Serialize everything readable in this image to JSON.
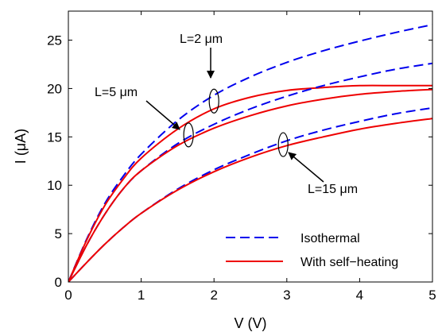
{
  "chart_data": {
    "type": "line",
    "xlabel": "V (V)",
    "ylabel": "I (μA)",
    "xlim": [
      0,
      5
    ],
    "ylim": [
      0,
      28
    ],
    "xticks": [
      "0",
      "1",
      "2",
      "3",
      "4",
      "5"
    ],
    "yticks": [
      "0",
      "5",
      "10",
      "15",
      "20",
      "25"
    ],
    "grid": false,
    "legend_position": "bottom-right",
    "colors": {
      "isothermal": "#0000ee",
      "self_heating": "#ee0000"
    },
    "legend": [
      {
        "label": "Isothermal",
        "style": "dashed",
        "color": "#0000ee"
      },
      {
        "label": "With self−heating",
        "style": "solid",
        "color": "#ee0000"
      }
    ],
    "series": [
      {
        "group": "L=2 μm",
        "name": "Isothermal",
        "style": "dashed",
        "color": "#0000ee",
        "x": [
          0,
          0.25,
          0.5,
          0.75,
          1,
          1.5,
          2,
          2.5,
          3,
          3.5,
          4,
          4.5,
          5
        ],
        "y": [
          0,
          4.4,
          8.1,
          10.9,
          13.2,
          16.7,
          19.3,
          21.2,
          22.7,
          23.9,
          24.9,
          25.8,
          26.6
        ]
      },
      {
        "group": "L=2 μm",
        "name": "With self−heating",
        "style": "solid",
        "color": "#ee0000",
        "x": [
          0,
          0.25,
          0.5,
          0.75,
          1,
          1.5,
          2,
          2.5,
          3,
          3.5,
          4,
          4.5,
          5
        ],
        "y": [
          0,
          4.3,
          7.9,
          10.6,
          12.8,
          15.8,
          17.9,
          19.1,
          19.8,
          20.1,
          20.3,
          20.3,
          20.3
        ]
      },
      {
        "group": "L=5 μm",
        "name": "Isothermal",
        "style": "dashed",
        "color": "#0000ee",
        "x": [
          0,
          0.25,
          0.5,
          0.75,
          1,
          1.5,
          2,
          2.5,
          3,
          3.5,
          4,
          4.5,
          5
        ],
        "y": [
          0,
          3.8,
          7.0,
          9.6,
          11.5,
          14.3,
          16.3,
          17.9,
          19.2,
          20.3,
          21.2,
          22.0,
          22.6
        ]
      },
      {
        "group": "L=5 μm",
        "name": "With self−heating",
        "style": "solid",
        "color": "#ee0000",
        "x": [
          0,
          0.25,
          0.5,
          0.75,
          1,
          1.5,
          2,
          2.5,
          3,
          3.5,
          4,
          4.5,
          5
        ],
        "y": [
          0,
          3.8,
          7.0,
          9.6,
          11.5,
          14.1,
          15.9,
          17.2,
          18.2,
          18.9,
          19.4,
          19.7,
          19.9
        ]
      },
      {
        "group": "L=15 μm",
        "name": "Isothermal",
        "style": "dashed",
        "color": "#0000ee",
        "x": [
          0,
          0.25,
          0.5,
          0.75,
          1,
          1.5,
          2,
          2.5,
          3,
          3.5,
          4,
          4.5,
          5
        ],
        "y": [
          0,
          2.0,
          3.9,
          5.6,
          7.1,
          9.6,
          11.6,
          13.2,
          14.6,
          15.7,
          16.6,
          17.4,
          18.0
        ]
      },
      {
        "group": "L=15 μm",
        "name": "With self−heating",
        "style": "solid",
        "color": "#ee0000",
        "x": [
          0,
          0.25,
          0.5,
          0.75,
          1,
          1.5,
          2,
          2.5,
          3,
          3.5,
          4,
          4.5,
          5
        ],
        "y": [
          0,
          2.0,
          3.9,
          5.6,
          7.1,
          9.5,
          11.4,
          12.9,
          14.1,
          15.0,
          15.8,
          16.4,
          16.9
        ]
      }
    ],
    "annotations": [
      {
        "text": "L=2 μm",
        "group": "L=2 μm",
        "at_x": 2.0,
        "at_y": 18.7
      },
      {
        "text": "L=5 μm",
        "group": "L=5 μm",
        "at_x": 1.65,
        "at_y": 15.2
      },
      {
        "text": "L=15 μm",
        "group": "L=15 μm",
        "at_x": 2.95,
        "at_y": 14.2
      }
    ]
  }
}
